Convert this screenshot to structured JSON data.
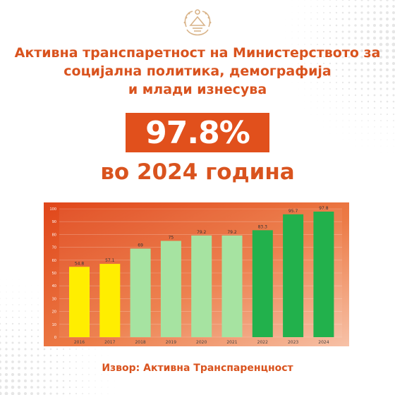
{
  "headline": {
    "line1": "Активна транспаретност на Министерството за",
    "line2": "социјална политика, демографија",
    "line3": "и млади изнесува"
  },
  "highlight_value": "97.8%",
  "subtitle": "во 2024 година",
  "source": "Извор: Активна Транспаренцност",
  "colors": {
    "accent": "#e1501c",
    "text": "#d9531e",
    "yellow": "#ffee00",
    "light_green": "#a6e3a1",
    "dark_green": "#22b14c"
  },
  "chart_data": {
    "type": "bar",
    "categories": [
      "2016",
      "2017",
      "2018",
      "2019",
      "2020",
      "2021",
      "2022",
      "2023",
      "2024"
    ],
    "values": [
      54.8,
      57.1,
      69,
      75,
      79.2,
      79.2,
      83.3,
      95.7,
      97.8
    ],
    "data_labels": [
      "54.8",
      "57.1",
      "69",
      "75",
      "79.2",
      "79.2",
      "83.3",
      "95.7",
      "97.8"
    ],
    "bar_colors": [
      "#ffee00",
      "#ffee00",
      "#a6e3a1",
      "#a6e3a1",
      "#a6e3a1",
      "#a6e3a1",
      "#22b14c",
      "#22b14c",
      "#22b14c"
    ],
    "ylim": [
      0,
      100
    ],
    "yticks": [
      0,
      10,
      20,
      30,
      40,
      50,
      60,
      70,
      80,
      90,
      100
    ],
    "title": "",
    "xlabel": "",
    "ylabel": "",
    "grid": true,
    "legend": "none"
  }
}
